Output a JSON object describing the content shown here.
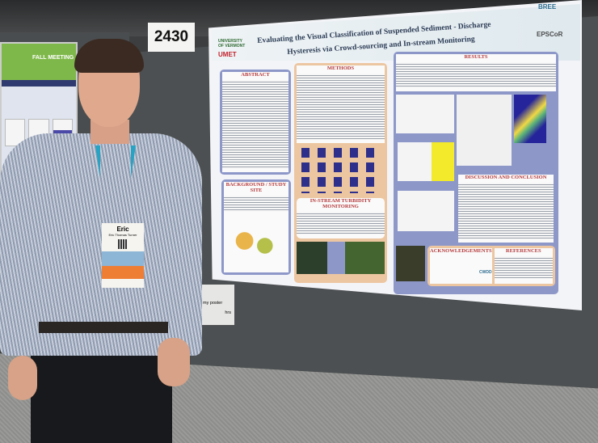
{
  "booth_number": "2430",
  "poster": {
    "title_line1": "Evaluating the Visual Classification of Suspended Sediment - Discharge",
    "title_line2": "Hysteresis via Crowd-sourcing and In-stream Monitoring",
    "logos": {
      "left_top": "UNIVERSITY OF VERMONT",
      "left_bottom": "UMET",
      "right_top": "BREE",
      "right_bottom": "EPSCoR",
      "ack_logo": "CWDD"
    },
    "sections": {
      "abstract": "ABSTRACT",
      "methods": "METHODS",
      "results": "RESULTS",
      "background": "BACKGROUND / STUDY SITE",
      "monitoring": "IN-STREAM TURBIDITY MONITORING",
      "discussion": "DISCUSSION AND CONCLUSION",
      "acknowledgements": "ACKNOWLEDGEMENTS",
      "references": "REFERENCES"
    },
    "colors": {
      "frame_blue": "#8d98c9",
      "frame_peach": "#ecc6a1",
      "heading_red": "#b5383a",
      "highlight_yellow": "#f2ea2a"
    }
  },
  "left_poster": {
    "banner": "FALL MEETING"
  },
  "badge": {
    "name": "Eric",
    "full_name": "Eric Thomas Turner"
  },
  "sign": {
    "line1": "I my poster",
    "line2": "hrs"
  }
}
